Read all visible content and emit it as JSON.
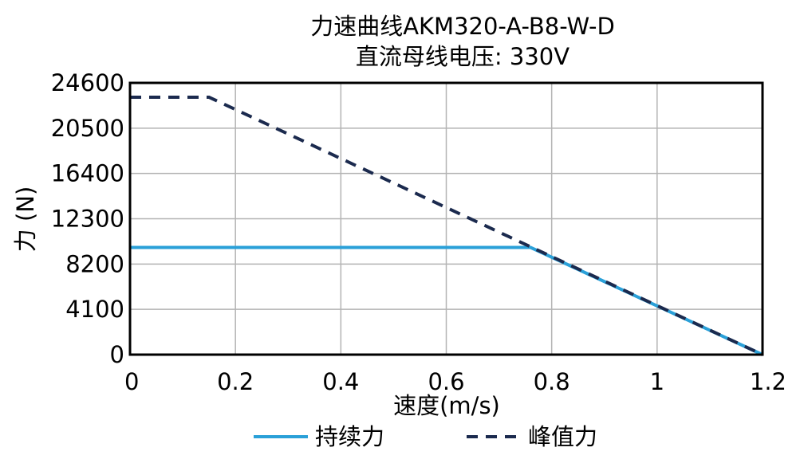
{
  "chart_data": {
    "type": "line",
    "title": "力速曲线AKM320-A-B8-W-D",
    "subtitle": "直流母线电压: 330V",
    "xlabel": "速度(m/s)",
    "ylabel": "力 (N)",
    "xlim": [
      0,
      1.2
    ],
    "ylim": [
      0,
      24600
    ],
    "xticks": [
      "0",
      "0.2",
      "0.4",
      "0.6",
      "0.8",
      "1",
      "1.2"
    ],
    "yticks": [
      "0",
      "4100",
      "8200",
      "12300",
      "16400",
      "20500",
      "24600"
    ],
    "grid": true,
    "legend_position": "bottom",
    "series": [
      {
        "name": "持续力",
        "color": "#2aa0d8",
        "style": "solid",
        "x": [
          0,
          0.76,
          1.2
        ],
        "y": [
          9700,
          9700,
          0
        ]
      },
      {
        "name": "峰值力",
        "color": "#1b2a4e",
        "style": "dashed",
        "x": [
          0,
          0.15,
          1.2
        ],
        "y": [
          23300,
          23300,
          0
        ]
      }
    ]
  }
}
